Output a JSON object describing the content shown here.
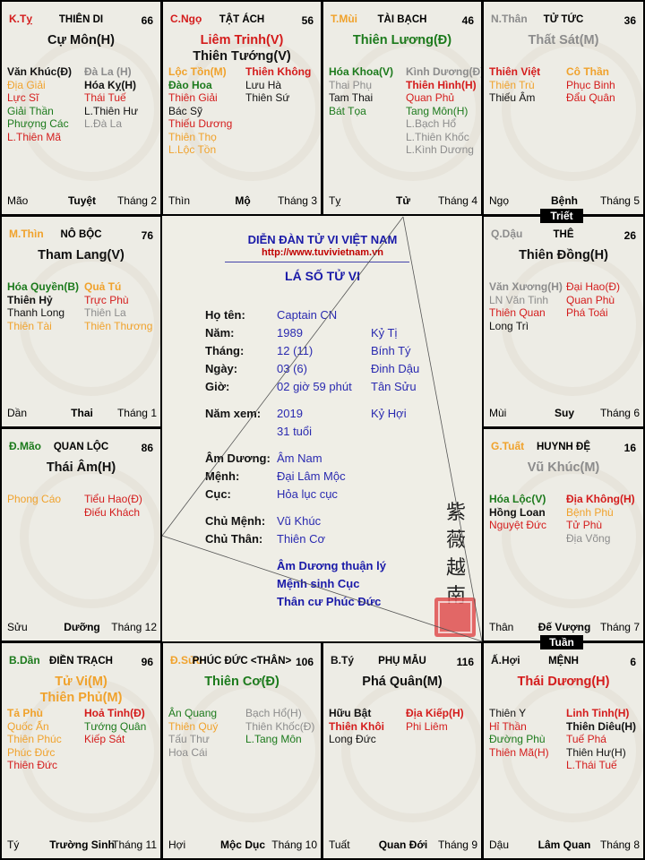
{
  "colors": {
    "r": "#d41c1c",
    "o": "#f0a22c",
    "g": "#1c7a1c",
    "gr": "#8c8c8c",
    "k": "#111111",
    "title_blue": "#1a1aa8",
    "url_red": "#c00000"
  },
  "markers": {
    "triet": "Triết",
    "tuan": "Tuần"
  },
  "cells": [
    {
      "branch": {
        "t": "K.Tỵ",
        "c": "r"
      },
      "palace": "THIÊN DI",
      "age": "66",
      "mains": [
        {
          "t": "Cự Môn(H)",
          "c": "k"
        }
      ],
      "left": [
        {
          "t": "Văn Khúc(Đ)",
          "c": "k",
          "b": 1
        },
        {
          "t": "Địa Giải",
          "c": "o"
        },
        {
          "t": "Lực Sĩ",
          "c": "r"
        },
        {
          "t": "Giải Thần",
          "c": "g"
        },
        {
          "t": "Phượng Các",
          "c": "g"
        },
        {
          "t": "L.Thiên Mã",
          "c": "r"
        }
      ],
      "right": [
        {
          "t": "Đà La (H)",
          "c": "gr",
          "b": 1
        },
        {
          "t": "Hóa Kỵ(H)",
          "c": "k",
          "b": 1
        },
        {
          "t": "Thái Tuế",
          "c": "r"
        },
        {
          "t": "L.Thiên Hư",
          "c": "k"
        },
        {
          "t": "L.Đà La",
          "c": "gr"
        }
      ],
      "footer": {
        "branch": "Mão",
        "stage": "Tuyệt",
        "month": "Tháng 2"
      }
    },
    {
      "branch": {
        "t": "C.Ngọ",
        "c": "r"
      },
      "palace": "TẬT ÁCH",
      "age": "56",
      "mains": [
        {
          "t": "Liêm Trinh(V)",
          "c": "r"
        },
        {
          "t": "Thiên Tướng(V)",
          "c": "k"
        }
      ],
      "left": [
        {
          "t": "Lộc Tồn(M)",
          "c": "o",
          "b": 1
        },
        {
          "t": "Đào Hoa",
          "c": "g",
          "b": 1
        },
        {
          "t": "Thiên Giải",
          "c": "r"
        },
        {
          "t": "Bác Sỹ",
          "c": "k"
        },
        {
          "t": "Thiếu Dương",
          "c": "r"
        },
        {
          "t": "Thiên Thọ",
          "c": "o"
        },
        {
          "t": "L.Lộc Tồn",
          "c": "o"
        }
      ],
      "right": [
        {
          "t": "Thiên Không",
          "c": "r",
          "b": 1
        },
        {
          "t": "Lưu Hà",
          "c": "k"
        },
        {
          "t": "Thiên Sứ",
          "c": "k"
        }
      ],
      "footer": {
        "branch": "Thìn",
        "stage": "Mộ",
        "month": "Tháng 3"
      }
    },
    {
      "branch": {
        "t": "T.Mùi",
        "c": "o"
      },
      "palace": "TÀI BẠCH",
      "age": "46",
      "mains": [
        {
          "t": "Thiên Lương(Đ)",
          "c": "g"
        }
      ],
      "left": [
        {
          "t": "Hóa Khoa(V)",
          "c": "g",
          "b": 1
        },
        {
          "t": "Thai Phụ",
          "c": "gr"
        },
        {
          "t": "Tam Thai",
          "c": "k"
        },
        {
          "t": "Bát Tọa",
          "c": "g"
        }
      ],
      "right": [
        {
          "t": "Kình Dương(Đ)",
          "c": "gr",
          "b": 1
        },
        {
          "t": "Thiên Hình(H)",
          "c": "r",
          "b": 1
        },
        {
          "t": "Quan Phủ",
          "c": "r"
        },
        {
          "t": "Tang Môn(H)",
          "c": "g"
        },
        {
          "t": "L.Bạch Hổ",
          "c": "gr"
        },
        {
          "t": "L.Thiên Khốc",
          "c": "gr"
        },
        {
          "t": "L.Kình Dương",
          "c": "gr"
        }
      ],
      "footer": {
        "branch": "Tỵ",
        "stage": "Tử",
        "month": "Tháng 4"
      }
    },
    {
      "branch": {
        "t": "N.Thân",
        "c": "gr"
      },
      "palace": "TỬ TỨC",
      "age": "36",
      "mains": [
        {
          "t": "Thất Sát(M)",
          "c": "gr"
        }
      ],
      "left": [
        {
          "t": "Thiên Việt",
          "c": "r",
          "b": 1
        },
        {
          "t": "Thiên Trù",
          "c": "o"
        },
        {
          "t": "Thiếu Âm",
          "c": "k"
        }
      ],
      "right": [
        {
          "t": "Cô Thần",
          "c": "o",
          "b": 1
        },
        {
          "t": "Phục Binh",
          "c": "r"
        },
        {
          "t": "Đẩu Quân",
          "c": "r"
        }
      ],
      "footer": {
        "branch": "Ngọ",
        "stage": "Bệnh",
        "month": "Tháng 5"
      }
    },
    {
      "branch": {
        "t": "M.Thìn",
        "c": "o"
      },
      "palace": "NÔ BỘC",
      "age": "76",
      "mains": [
        {
          "t": "Tham Lang(V)",
          "c": "k"
        }
      ],
      "left": [
        {
          "t": "Hóa Quyền(B)",
          "c": "g",
          "b": 1
        },
        {
          "t": "Thiên Hỷ",
          "c": "k",
          "b": 1
        },
        {
          "t": "Thanh Long",
          "c": "k"
        },
        {
          "t": "Thiên Tài",
          "c": "o"
        }
      ],
      "right": [
        {
          "t": "Quả Tú",
          "c": "o",
          "b": 1
        },
        {
          "t": "Trực Phù",
          "c": "r"
        },
        {
          "t": "Thiên La",
          "c": "gr"
        },
        {
          "t": "Thiên Thương",
          "c": "o"
        }
      ],
      "footer": {
        "branch": "Dần",
        "stage": "Thai",
        "month": "Tháng 1"
      }
    },
    {
      "branch": {
        "t": "Q.Dậu",
        "c": "gr"
      },
      "palace": "THÊ",
      "age": "26",
      "mains": [
        {
          "t": "Thiên Đồng(H)",
          "c": "k"
        }
      ],
      "left": [
        {
          "t": "Văn Xương(H)",
          "c": "gr",
          "b": 1
        },
        {
          "t": "LN Văn Tinh",
          "c": "gr"
        },
        {
          "t": "Thiên Quan",
          "c": "r"
        },
        {
          "t": "Long Trì",
          "c": "k"
        }
      ],
      "right": [
        {
          "t": "Đại Hao(Đ)",
          "c": "r"
        },
        {
          "t": "Quan Phù",
          "c": "r"
        },
        {
          "t": "Phá Toái",
          "c": "r"
        }
      ],
      "footer": {
        "branch": "Mùi",
        "stage": "Suy",
        "month": "Tháng 6"
      }
    },
    {
      "branch": {
        "t": "Đ.Mão",
        "c": "g"
      },
      "palace": "QUAN LỘC",
      "age": "86",
      "mains": [
        {
          "t": "Thái Âm(H)",
          "c": "k"
        }
      ],
      "left": [
        {
          "t": "Phong Cáo",
          "c": "o"
        }
      ],
      "right": [
        {
          "t": "Tiểu Hao(Đ)",
          "c": "r"
        },
        {
          "t": "Điếu Khách",
          "c": "r"
        }
      ],
      "footer": {
        "branch": "Sửu",
        "stage": "Dưỡng",
        "month": "Tháng 12"
      }
    },
    {
      "branch": {
        "t": "G.Tuất",
        "c": "o"
      },
      "palace": "HUYNH ĐỆ",
      "age": "16",
      "mains": [
        {
          "t": "Vũ Khúc(M)",
          "c": "gr"
        }
      ],
      "left": [
        {
          "t": "Hóa Lộc(V)",
          "c": "g",
          "b": 1
        },
        {
          "t": "Hồng Loan",
          "c": "k",
          "b": 1
        },
        {
          "t": "Nguyệt Đức",
          "c": "r"
        }
      ],
      "right": [
        {
          "t": "Địa Không(H)",
          "c": "r",
          "b": 1
        },
        {
          "t": "Bệnh Phù",
          "c": "o"
        },
        {
          "t": "Tử Phù",
          "c": "r"
        },
        {
          "t": "Địa Võng",
          "c": "gr"
        }
      ],
      "footer": {
        "branch": "Thân",
        "stage": "Đế Vượng",
        "month": "Tháng 7"
      }
    },
    {
      "branch": {
        "t": "B.Dần",
        "c": "g"
      },
      "palace": "ĐIỀN TRẠCH",
      "age": "96",
      "mains": [
        {
          "t": "Tử Vi(M)",
          "c": "o"
        },
        {
          "t": "Thiên Phủ(M)",
          "c": "o"
        }
      ],
      "left": [
        {
          "t": "Tả Phù",
          "c": "o",
          "b": 1
        },
        {
          "t": "Quốc Ấn",
          "c": "o"
        },
        {
          "t": "Thiên Phúc",
          "c": "o"
        },
        {
          "t": "Phúc Đức",
          "c": "o"
        },
        {
          "t": "Thiên Đức",
          "c": "r"
        }
      ],
      "right": [
        {
          "t": "Hoả Tinh(Đ)",
          "c": "r",
          "b": 1
        },
        {
          "t": "Tướng Quân",
          "c": "g"
        },
        {
          "t": "Kiếp Sát",
          "c": "r"
        }
      ],
      "footer": {
        "branch": "Tý",
        "stage": "Trường Sinh",
        "month": "Tháng 11"
      }
    },
    {
      "branch": {
        "t": "Đ.Sửu",
        "c": "o"
      },
      "palace": "PHÚC ĐỨC <THÂN>",
      "age": "106",
      "mains": [
        {
          "t": "Thiên Cơ(Đ)",
          "c": "g"
        }
      ],
      "left": [
        {
          "t": "Ân Quang",
          "c": "g"
        },
        {
          "t": "Thiên Quý",
          "c": "o"
        },
        {
          "t": "Tấu Thư",
          "c": "gr"
        },
        {
          "t": "Hoa Cái",
          "c": "gr"
        }
      ],
      "right": [
        {
          "t": "Bạch Hổ(H)",
          "c": "gr"
        },
        {
          "t": "Thiên Khốc(Đ)",
          "c": "gr"
        },
        {
          "t": "L.Tang Môn",
          "c": "g"
        }
      ],
      "footer": {
        "branch": "Hợi",
        "stage": "Mộc Dục",
        "month": "Tháng 10"
      }
    },
    {
      "branch": {
        "t": "B.Tý",
        "c": "k"
      },
      "palace": "PHỤ MẪU",
      "age": "116",
      "mains": [
        {
          "t": "Phá Quân(M)",
          "c": "k"
        }
      ],
      "left": [
        {
          "t": "Hữu Bật",
          "c": "k",
          "b": 1
        },
        {
          "t": "Thiên Khôi",
          "c": "r",
          "b": 1
        },
        {
          "t": "Long Đức",
          "c": "k"
        }
      ],
      "right": [
        {
          "t": "Địa Kiếp(H)",
          "c": "r",
          "b": 1
        },
        {
          "t": "Phi Liêm",
          "c": "r"
        }
      ],
      "footer": {
        "branch": "Tuất",
        "stage": "Quan Đới",
        "month": "Tháng 9"
      }
    },
    {
      "branch": {
        "t": "Ấ.Hợi",
        "c": "k"
      },
      "palace": "MỆNH",
      "age": "6",
      "mains": [
        {
          "t": "Thái Dương(H)",
          "c": "r"
        }
      ],
      "left": [
        {
          "t": "Thiên Y",
          "c": "k"
        },
        {
          "t": "Hỉ Thần",
          "c": "r"
        },
        {
          "t": "Đường Phù",
          "c": "g"
        },
        {
          "t": "Thiên Mã(H)",
          "c": "r"
        }
      ],
      "right": [
        {
          "t": "Linh Tinh(H)",
          "c": "r",
          "b": 1
        },
        {
          "t": "Thiên Diêu(H)",
          "c": "k",
          "b": 1
        },
        {
          "t": "Tuế Phá",
          "c": "r"
        },
        {
          "t": "Thiên Hư(H)",
          "c": "k"
        },
        {
          "t": "L.Thái Tuế",
          "c": "r"
        }
      ],
      "footer": {
        "branch": "Dậu",
        "stage": "Lâm Quan",
        "month": "Tháng 8"
      }
    }
  ],
  "center": {
    "title": "DIỄN ĐÀN TỬ VI VIỆT NAM",
    "url": "http://www.tuvivietnam.vn",
    "subtitle": "LÁ SỐ TỬ VI",
    "rows": [
      {
        "label": "Họ tên:",
        "v1": "Captain CN",
        "v2": ""
      },
      {
        "label": "Năm:",
        "v1": "1989",
        "v2": "Kỷ Tị"
      },
      {
        "label": "Tháng:",
        "v1": "12 (11)",
        "v2": "Bính Tý"
      },
      {
        "label": "Ngày:",
        "v1": "03 (6)",
        "v2": "Đinh Dậu"
      },
      {
        "label": "Giờ:",
        "v1": "02 giờ 59 phút",
        "v2": "Tân Sửu"
      },
      {
        "label": "Năm xem:",
        "v1": "2019",
        "v2": "Kỷ Hợi"
      },
      {
        "label": "",
        "v1": "31 tuổi",
        "v2": ""
      },
      {
        "label": "Âm Dương:",
        "v1": "Âm Nam",
        "v2": ""
      },
      {
        "label": "Mệnh:",
        "v1": "Đại Lâm Mộc",
        "v2": ""
      },
      {
        "label": "Cục:",
        "v1": "Hỏa lục cục",
        "v2": ""
      },
      {
        "label": "Chủ Mệnh:",
        "v1": "Vũ Khúc",
        "v2": ""
      },
      {
        "label": "Chủ Thân:",
        "v1": "Thiên Cơ",
        "v2": ""
      }
    ],
    "notes": [
      "Âm Dương thuận lý",
      "Mệnh sinh Cục",
      "Thân cư Phúc Đức"
    ],
    "calligraphy": "紫薇越南"
  }
}
